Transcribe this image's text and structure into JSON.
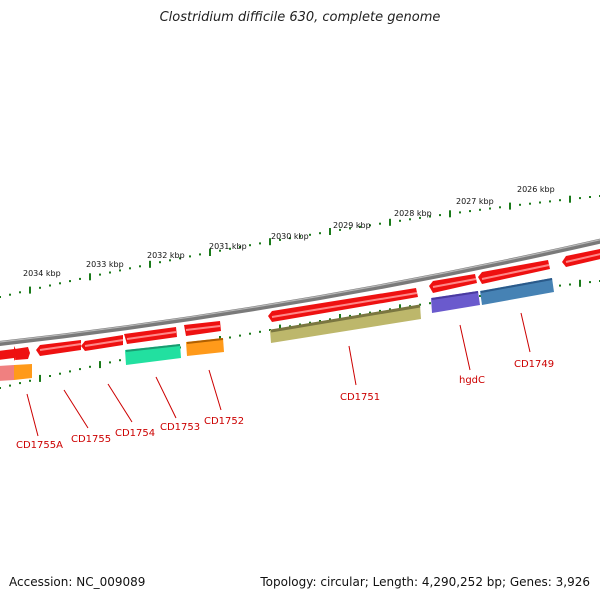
{
  "title": "Clostridium difficile 630, complete genome",
  "footer": {
    "accession": "Accession: NC_009089",
    "summary": "Topology: circular; Length: 4,290,252 bp; Genes: 3,926"
  },
  "colors": {
    "backbone": "#7a7a7a",
    "tick": "#1a7a1a",
    "cds": "#ee1111",
    "label": "#cc0000"
  },
  "kbp_labels": [
    "2034 kbp",
    "2033 kbp",
    "2032 kbp",
    "2031 kbp",
    "2030 kbp",
    "2029 kbp",
    "2028 kbp",
    "2027 kbp",
    "2026 kbp"
  ],
  "gene_labels": [
    "CD1755A",
    "CD1755",
    "CD1754",
    "CD1753",
    "CD1752",
    "CD1751",
    "hgdC",
    "CD1749"
  ]
}
